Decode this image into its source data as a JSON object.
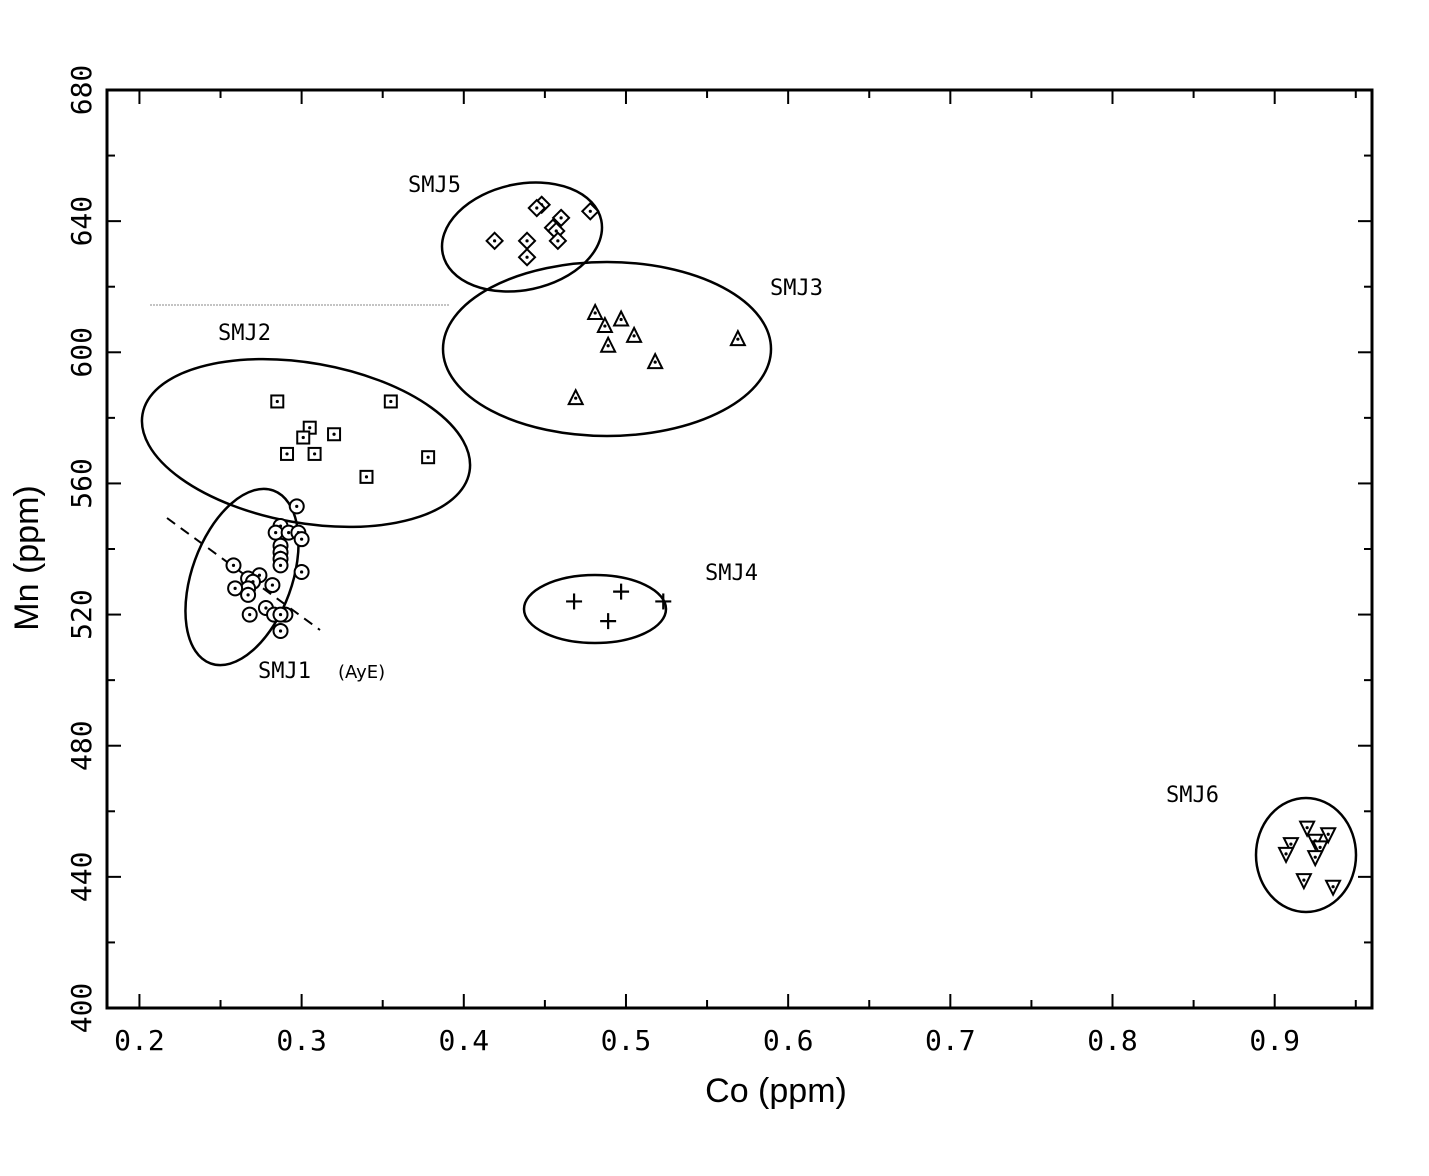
{
  "chart_data": {
    "type": "scatter",
    "xlabel": "Co (ppm)",
    "ylabel": "Mn (ppm)",
    "xlim": [
      0.18,
      0.96
    ],
    "ylim": [
      400,
      680
    ],
    "xticks": [
      "0.2",
      "0.3",
      "0.4",
      "0.5",
      "0.6",
      "0.7",
      "0.8",
      "0.9"
    ],
    "yticks": [
      "400",
      "440",
      "480",
      "520",
      "560",
      "600",
      "640",
      "680"
    ],
    "grid": false,
    "series": [
      {
        "name": "SMJ1",
        "marker": "circle-dot",
        "annotation": "(AyE)",
        "points": [
          [
            0.297,
            553
          ],
          [
            0.287,
            547
          ],
          [
            0.284,
            545
          ],
          [
            0.292,
            545
          ],
          [
            0.298,
            545
          ],
          [
            0.3,
            543
          ],
          [
            0.287,
            541
          ],
          [
            0.287,
            539
          ],
          [
            0.287,
            537
          ],
          [
            0.287,
            535
          ],
          [
            0.258,
            535
          ],
          [
            0.274,
            532
          ],
          [
            0.3,
            533
          ],
          [
            0.267,
            531
          ],
          [
            0.27,
            530
          ],
          [
            0.267,
            528
          ],
          [
            0.267,
            526
          ],
          [
            0.282,
            529
          ],
          [
            0.259,
            528
          ],
          [
            0.278,
            522
          ],
          [
            0.283,
            520
          ],
          [
            0.29,
            520
          ],
          [
            0.287,
            520
          ],
          [
            0.268,
            520
          ],
          [
            0.287,
            515
          ]
        ]
      },
      {
        "name": "SMJ2",
        "marker": "square-dot",
        "points": [
          [
            0.285,
            585
          ],
          [
            0.355,
            585
          ],
          [
            0.305,
            577
          ],
          [
            0.32,
            575
          ],
          [
            0.301,
            574
          ],
          [
            0.291,
            569
          ],
          [
            0.308,
            569
          ],
          [
            0.378,
            568
          ],
          [
            0.34,
            562
          ]
        ]
      },
      {
        "name": "SMJ3",
        "marker": "triangle-up-dot",
        "points": [
          [
            0.481,
            612
          ],
          [
            0.497,
            610
          ],
          [
            0.487,
            608
          ],
          [
            0.505,
            605
          ],
          [
            0.489,
            602
          ],
          [
            0.569,
            604
          ],
          [
            0.518,
            597
          ],
          [
            0.469,
            586
          ]
        ]
      },
      {
        "name": "SMJ4",
        "marker": "plus",
        "points": [
          [
            0.468,
            524
          ],
          [
            0.497,
            527
          ],
          [
            0.523,
            524
          ],
          [
            0.489,
            518
          ]
        ]
      },
      {
        "name": "SMJ5",
        "marker": "diamond-dot",
        "points": [
          [
            0.448,
            645
          ],
          [
            0.445,
            644
          ],
          [
            0.478,
            643
          ],
          [
            0.46,
            641
          ],
          [
            0.455,
            638
          ],
          [
            0.457,
            637
          ],
          [
            0.419,
            634
          ],
          [
            0.439,
            634
          ],
          [
            0.458,
            634
          ],
          [
            0.439,
            629
          ]
        ]
      },
      {
        "name": "SMJ6",
        "marker": "triangle-down-dot",
        "points": [
          [
            0.92,
            455
          ],
          [
            0.933,
            453
          ],
          [
            0.925,
            451
          ],
          [
            0.91,
            450
          ],
          [
            0.928,
            449
          ],
          [
            0.907,
            447
          ],
          [
            0.925,
            446
          ],
          [
            0.918,
            439
          ],
          [
            0.936,
            437
          ]
        ]
      }
    ]
  }
}
